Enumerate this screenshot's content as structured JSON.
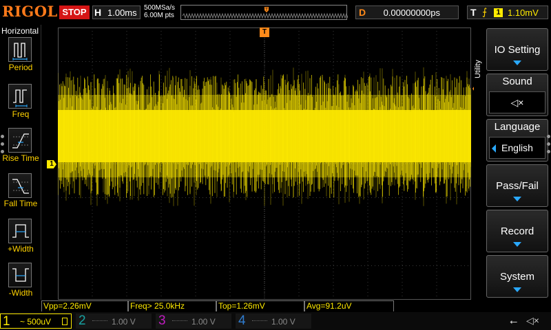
{
  "brand": "RIGOL",
  "run_state": "STOP",
  "horizontal": {
    "label": "H",
    "timebase": "1.00ms"
  },
  "acquisition": {
    "sample_rate": "500MSa/s",
    "memory_depth": "6.00M pts"
  },
  "memory_marker": "T",
  "delay": {
    "label": "D",
    "value": "0.00000000ps"
  },
  "trigger": {
    "label": "T",
    "source": "1",
    "level": "1.10mV",
    "edge_icon": "rising-edge-icon",
    "marker": "T"
  },
  "channel_marker": "1",
  "left_menu": {
    "title": "Horizontal",
    "items": [
      {
        "label": "Period",
        "icon": "period-icon"
      },
      {
        "label": "Freq",
        "icon": "freq-icon"
      },
      {
        "label": "Rise Time",
        "icon": "rise-time-icon"
      },
      {
        "label": "Fall Time",
        "icon": "fall-time-icon"
      },
      {
        "label": "+Width",
        "icon": "pos-width-icon"
      },
      {
        "label": "-Width",
        "icon": "neg-width-icon"
      }
    ]
  },
  "right_menu": {
    "title": "Utility",
    "items": [
      {
        "label": "IO Setting"
      },
      {
        "label": "Sound",
        "sub": "◁×"
      },
      {
        "label": "Language",
        "sub": "English"
      },
      {
        "label": "Pass/Fail"
      },
      {
        "label": "Record"
      },
      {
        "label": "System"
      }
    ]
  },
  "measurements": [
    {
      "text": "Vpp=2.26mV"
    },
    {
      "text": "Freq> 25.0kHz"
    },
    {
      "text": "Top=1.26mV"
    },
    {
      "text": "Avg=91.2uV"
    }
  ],
  "channels": [
    {
      "num": "1",
      "coupling": "~",
      "scale": "500uV",
      "color": "#ffea00"
    },
    {
      "num": "2",
      "scale": "1.00 V",
      "color": "#17a2a2"
    },
    {
      "num": "3",
      "scale": "1.00 V",
      "color": "#c01cc0"
    },
    {
      "num": "4",
      "scale": "1.00 V",
      "color": "#2f7dd1"
    }
  ],
  "status_icons": [
    "usb-icon",
    "speaker-muted-icon"
  ],
  "colors": {
    "ch1": "#ffea00",
    "trigger": "#ff8a1a",
    "stop": "#d51515",
    "menu_arrow": "#2aa9ff"
  }
}
